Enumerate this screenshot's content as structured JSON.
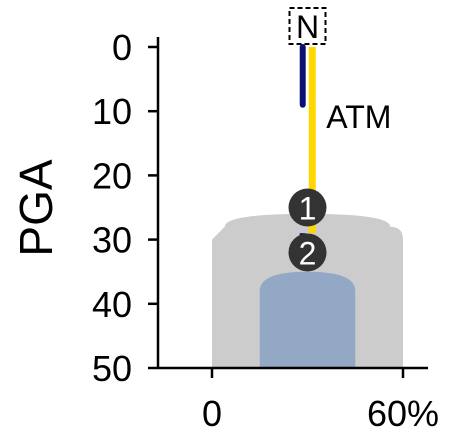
{
  "chart_data": {
    "type": "line",
    "ylabel": "PGA",
    "y_axis": {
      "ticks": [
        0,
        10,
        20,
        30,
        40,
        50
      ],
      "range": [
        0,
        50
      ],
      "inverted": true
    },
    "x_axis": {
      "ticks": [
        0,
        60
      ],
      "tick_labels": [
        "0",
        "60%"
      ],
      "range": [
        -15,
        75
      ]
    },
    "top_marker": "N",
    "annotations": [
      {
        "text": "ATM"
      }
    ],
    "series": [
      {
        "color": "#0a1172",
        "x": 28.5,
        "y_start": 0,
        "y_end": 9
      },
      {
        "color": "#ffd700",
        "x": 31.5,
        "y_start": 0,
        "y_end": 29
      },
      {
        "color": "#0a1172",
        "x": 28.5,
        "y_start": 29,
        "y_end": 33
      }
    ],
    "markers": [
      {
        "label": "1",
        "x": 30,
        "y": 25
      },
      {
        "label": "2",
        "x": 30,
        "y": 32
      }
    ],
    "distributions": [
      {
        "color": "#cccccc",
        "profile": [
          [
            26,
            60
          ],
          [
            28,
            52
          ],
          [
            30,
            60
          ],
          [
            32,
            60
          ],
          [
            50,
            60
          ]
        ]
      },
      {
        "color": "#93a8c4",
        "profile": [
          [
            35,
            30
          ],
          [
            38,
            30
          ],
          [
            50,
            30
          ]
        ]
      }
    ],
    "colors": {
      "axis": "#000000",
      "marker_fill": "#333333",
      "marker_text": "#ffffff"
    }
  }
}
